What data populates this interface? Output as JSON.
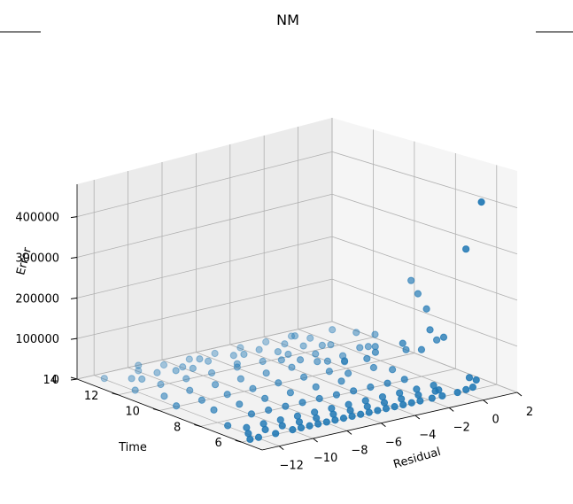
{
  "chart_data": {
    "type": "scatter",
    "projection": "3d",
    "title": "NM",
    "xlabel": "Residual",
    "ylabel": "Time",
    "zlabel": "Error",
    "xlim": [
      -13,
      2
    ],
    "ylim": [
      5,
      14
    ],
    "zlim": [
      0,
      480000
    ],
    "xticks": [
      "−12",
      "−10",
      "−8",
      "−6",
      "−4",
      "−2",
      "0",
      "2"
    ],
    "xtick_values": [
      -12,
      -10,
      -8,
      -6,
      -4,
      -2,
      0,
      2
    ],
    "yticks": [
      "6",
      "8",
      "10",
      "12",
      "14"
    ],
    "ytick_values": [
      6,
      8,
      10,
      12,
      14
    ],
    "zticks": [
      "0",
      "100000",
      "200000",
      "300000",
      "400000"
    ],
    "ztick_values": [
      0,
      100000,
      200000,
      300000,
      400000
    ],
    "grid": true,
    "marker_color": "#1f77b4",
    "points": [
      [
        0.5,
        5.5,
        420000
      ],
      [
        0.8,
        6.5,
        300000
      ],
      [
        1.2,
        9.5,
        180000
      ],
      [
        1.0,
        9.0,
        160000
      ],
      [
        0.9,
        8.5,
        135000
      ],
      [
        0.5,
        8.0,
        100000
      ],
      [
        0.7,
        7.5,
        90000
      ],
      [
        -0.5,
        8.5,
        70000
      ],
      [
        0.0,
        8.0,
        60000
      ],
      [
        -1.5,
        9.0,
        50000
      ],
      [
        1.5,
        8.5,
        60000
      ],
      [
        -2.0,
        9.0,
        40000
      ],
      [
        0.3,
        9.0,
        40000
      ],
      [
        -0.3,
        10.0,
        35000
      ],
      [
        1.0,
        12.0,
        20000
      ],
      [
        0.5,
        11.0,
        10000
      ],
      [
        -2.0,
        12.5,
        30000
      ],
      [
        0.8,
        13.0,
        10000
      ],
      [
        -0.5,
        12.0,
        5000
      ],
      [
        1.5,
        11.5,
        20000
      ],
      [
        0.0,
        11.0,
        12000
      ],
      [
        -1.0,
        12.0,
        8000
      ],
      [
        -2.0,
        11.5,
        6000
      ],
      [
        -3.0,
        12.0,
        5000
      ],
      [
        -1.5,
        10.5,
        4000
      ],
      [
        0.6,
        6.0,
        6000
      ],
      [
        0.8,
        6.0,
        20000
      ],
      [
        1.0,
        6.5,
        15000
      ],
      [
        0.2,
        6.0,
        4000
      ],
      [
        -0.8,
        6.5,
        3000
      ],
      [
        -0.3,
        6.0,
        2000
      ],
      [
        -1.2,
        6.0,
        2000
      ],
      [
        -1.8,
        6.0,
        2000
      ],
      [
        -2.5,
        6.0,
        2000
      ],
      [
        -3.0,
        6.0,
        2000
      ],
      [
        -3.5,
        6.0,
        2000
      ],
      [
        -4.0,
        6.0,
        2000
      ],
      [
        -4.5,
        6.0,
        2000
      ],
      [
        -5.0,
        6.0,
        2000
      ],
      [
        -5.5,
        6.0,
        2000
      ],
      [
        -6.0,
        6.0,
        2000
      ],
      [
        -6.5,
        6.0,
        2000
      ],
      [
        -7.0,
        6.0,
        2000
      ],
      [
        -7.5,
        6.0,
        2000
      ],
      [
        -8.0,
        6.0,
        2000
      ],
      [
        -8.5,
        6.0,
        2000
      ],
      [
        -9.0,
        6.0,
        2000
      ],
      [
        -9.5,
        6.0,
        2000
      ],
      [
        -10.0,
        6.0,
        2000
      ],
      [
        -11.0,
        6.0,
        2000
      ],
      [
        -12.0,
        6.0,
        2000
      ],
      [
        -12.5,
        6.0,
        2000
      ],
      [
        -12.0,
        6.5,
        2000
      ],
      [
        -11.0,
        6.5,
        2000
      ],
      [
        -10.0,
        6.5,
        2000
      ],
      [
        -9.0,
        6.5,
        2000
      ],
      [
        -8.0,
        6.5,
        2000
      ],
      [
        -7.0,
        6.5,
        2000
      ],
      [
        -6.0,
        6.5,
        2000
      ],
      [
        -5.0,
        6.5,
        2000
      ],
      [
        -4.0,
        6.5,
        2000
      ],
      [
        -3.0,
        6.5,
        2000
      ],
      [
        -2.0,
        6.5,
        2000
      ],
      [
        -1.0,
        6.5,
        2000
      ],
      [
        -12.0,
        7.5,
        2000
      ],
      [
        -11.5,
        7.0,
        2000
      ],
      [
        -10.5,
        7.0,
        2000
      ],
      [
        -9.5,
        7.0,
        2000
      ],
      [
        -8.5,
        7.0,
        2000
      ],
      [
        -7.5,
        7.0,
        2000
      ],
      [
        -6.5,
        7.0,
        2000
      ],
      [
        -5.5,
        7.0,
        2000
      ],
      [
        -4.5,
        7.0,
        2000
      ],
      [
        -3.5,
        7.0,
        2000
      ],
      [
        -2.5,
        7.0,
        2000
      ],
      [
        -1.5,
        7.0,
        2000
      ],
      [
        -0.5,
        7.0,
        2000
      ],
      [
        -10.0,
        8.0,
        2000
      ],
      [
        -9.0,
        8.0,
        2000
      ],
      [
        -8.0,
        8.0,
        2000
      ],
      [
        -7.0,
        8.0,
        2000
      ],
      [
        -6.0,
        8.0,
        2000
      ],
      [
        -5.0,
        8.0,
        2000
      ],
      [
        -4.0,
        8.0,
        2000
      ],
      [
        -3.0,
        8.0,
        2000
      ],
      [
        -2.0,
        8.0,
        2000
      ],
      [
        -1.0,
        8.0,
        2000
      ],
      [
        -11.0,
        9.0,
        2000
      ],
      [
        -9.5,
        9.0,
        2000
      ],
      [
        -8.0,
        9.0,
        2000
      ],
      [
        -6.5,
        9.0,
        2000
      ],
      [
        -5.0,
        9.0,
        2000
      ],
      [
        -3.5,
        9.0,
        2000
      ],
      [
        -2.5,
        9.5,
        2000
      ],
      [
        -1.0,
        9.5,
        2000
      ],
      [
        -0.5,
        9.0,
        2000
      ],
      [
        -12.0,
        10.0,
        2000
      ],
      [
        -10.5,
        10.0,
        2000
      ],
      [
        -9.0,
        10.0,
        2000
      ],
      [
        -7.5,
        10.0,
        2000
      ],
      [
        -6.0,
        10.0,
        2000
      ],
      [
        -4.5,
        10.0,
        2000
      ],
      [
        -3.0,
        10.0,
        2000
      ],
      [
        -1.5,
        10.5,
        2000
      ],
      [
        -11.5,
        11.0,
        2000
      ],
      [
        -10.0,
        11.0,
        2000
      ],
      [
        -8.5,
        11.0,
        2000
      ],
      [
        -7.0,
        11.0,
        2000
      ],
      [
        -5.5,
        11.0,
        2000
      ],
      [
        -4.0,
        11.0,
        2000
      ],
      [
        -2.5,
        11.0,
        2000
      ],
      [
        -1.0,
        11.0,
        2000
      ],
      [
        -12.0,
        12.0,
        2000
      ],
      [
        -10.5,
        12.0,
        2000
      ],
      [
        -9.0,
        12.0,
        2000
      ],
      [
        -7.5,
        12.0,
        2000
      ],
      [
        -6.0,
        12.0,
        2000
      ],
      [
        -4.5,
        12.0,
        2000
      ],
      [
        -3.0,
        12.5,
        2000
      ],
      [
        -1.5,
        12.5,
        2000
      ],
      [
        -11.0,
        13.0,
        2000
      ],
      [
        -9.5,
        13.0,
        2000
      ],
      [
        -8.0,
        13.0,
        2000
      ],
      [
        -6.5,
        13.0,
        2000
      ],
      [
        -5.0,
        13.0,
        2000
      ],
      [
        -3.5,
        13.0,
        2000
      ],
      [
        -2.0,
        13.0,
        2000
      ],
      [
        -0.5,
        13.0,
        2000
      ],
      [
        -12.0,
        13.5,
        2000
      ],
      [
        -10.0,
        13.5,
        2000
      ],
      [
        -8.5,
        13.5,
        2000
      ],
      [
        -7.0,
        13.5,
        2000
      ],
      [
        -5.5,
        13.5,
        2000
      ],
      [
        -4.0,
        13.5,
        2000
      ],
      [
        -2.5,
        13.5,
        2000
      ],
      [
        -1.0,
        13.5,
        2000
      ],
      [
        -9.0,
        12.5,
        12000
      ],
      [
        -8.0,
        12.5,
        8000
      ],
      [
        -7.0,
        13.0,
        12000
      ],
      [
        -6.0,
        12.0,
        10000
      ],
      [
        -5.0,
        12.5,
        14000
      ],
      [
        -4.0,
        11.5,
        10000
      ],
      [
        -3.5,
        11.0,
        15000
      ],
      [
        -2.5,
        10.5,
        12000
      ],
      [
        -11.0,
        12.5,
        10000
      ],
      [
        -10.0,
        13.5,
        15000
      ]
    ]
  }
}
